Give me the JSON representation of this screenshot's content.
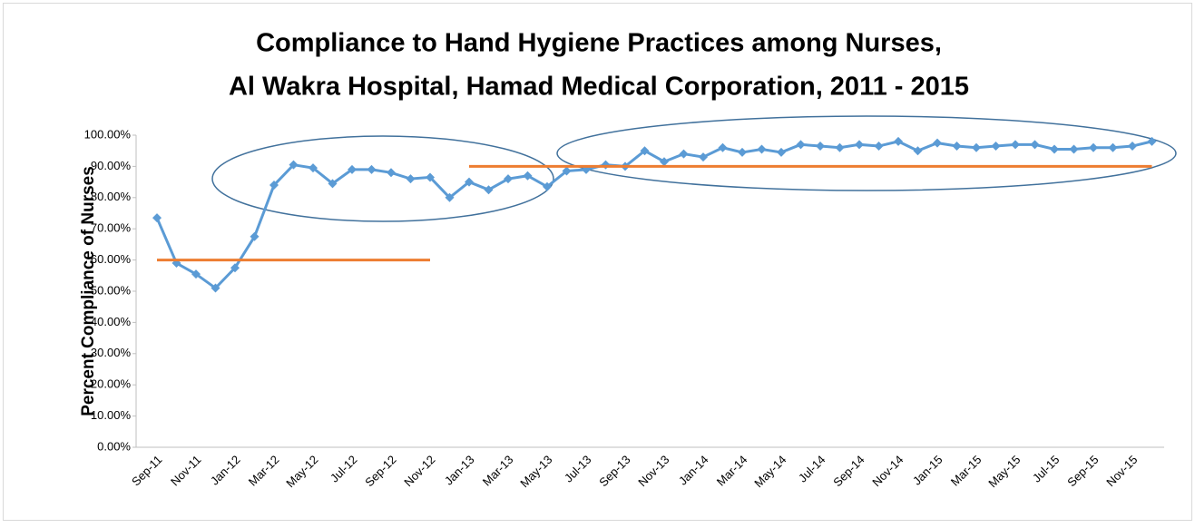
{
  "chart_data": {
    "type": "line",
    "title": [
      "Compliance to Hand Hygiene Practices among Nurses,",
      "Al Wakra Hospital, Hamad Medical Corporation, 2011 - 2015"
    ],
    "y_label": "Percent Compliance of Nurses",
    "categories": [
      "Sep-11",
      null,
      "Nov-11",
      null,
      "Jan-12",
      null,
      "Mar-12",
      null,
      "May-12",
      null,
      "Jul-12",
      null,
      "Sep-12",
      null,
      "Nov-12",
      null,
      "Jan-13",
      null,
      "Mar-13",
      null,
      "May-13",
      null,
      "Jul-13",
      null,
      "Sep-13",
      null,
      "Nov-13",
      null,
      "Jan-14",
      null,
      "Mar-14",
      null,
      "May-14",
      null,
      "Jul-14",
      null,
      "Sep-14",
      null,
      "Nov-14",
      null,
      "Jan-15",
      null,
      "Mar-15",
      null,
      "May-15",
      null,
      "Jul-15",
      null,
      "Sep-15",
      null,
      "Nov-15",
      null
    ],
    "series": [
      {
        "color": "#5b9bd5",
        "markers": true,
        "values": [
          73.5,
          59,
          55.5,
          51,
          57.5,
          67.5,
          84,
          90.5,
          89.5,
          84.5,
          89,
          89,
          88,
          86,
          86.5,
          80,
          85,
          82.5,
          86,
          87,
          83.5,
          88.5,
          89,
          90.5,
          90,
          95,
          91.5,
          94,
          93,
          96,
          94.5,
          95.5,
          94.5,
          97,
          96.5,
          96,
          97,
          96.5,
          98,
          95,
          97.5,
          96.5,
          96,
          96.5,
          97,
          97,
          95.5,
          95.5,
          96,
          96,
          96.5,
          98
        ]
      },
      {
        "color": "#ed7d31",
        "markers": false,
        "values": [
          60,
          60,
          60,
          60,
          60,
          60,
          60,
          60,
          60,
          60,
          60,
          60,
          60,
          60,
          60,
          null,
          null,
          null,
          null,
          null,
          null,
          null,
          null,
          null,
          null,
          null,
          null,
          null,
          null,
          null,
          null,
          null,
          null,
          null,
          null,
          null,
          null,
          null,
          null,
          null,
          null,
          null,
          null,
          null,
          null,
          null,
          null,
          null,
          null,
          null,
          null,
          null
        ]
      },
      {
        "color": "#ed7d31",
        "markers": false,
        "values": [
          null,
          null,
          null,
          null,
          null,
          null,
          null,
          null,
          null,
          null,
          null,
          null,
          null,
          null,
          null,
          null,
          90,
          90,
          90,
          90,
          90,
          90,
          90,
          90,
          90,
          90,
          90,
          90,
          90,
          90,
          90,
          90,
          90,
          90,
          90,
          90,
          90,
          90,
          90,
          90,
          90,
          90,
          90,
          90,
          90,
          90,
          90,
          90,
          90,
          90,
          90,
          90
        ]
      }
    ],
    "ylim": [
      0,
      100
    ],
    "yticks": [
      {
        "value": 0,
        "label": "0.00%"
      },
      {
        "value": 10,
        "label": "10.00%"
      },
      {
        "value": 20,
        "label": "20.00%"
      },
      {
        "value": 30,
        "label": "30.00%"
      },
      {
        "value": 40,
        "label": "40.00%"
      },
      {
        "value": 50,
        "label": "50.00%"
      },
      {
        "value": 60,
        "label": "60.00%"
      },
      {
        "value": 70,
        "label": "70.00%"
      },
      {
        "value": 80,
        "label": "80.00%"
      },
      {
        "value": 90,
        "label": "90.00%"
      },
      {
        "value": 100,
        "label": "100.00%"
      }
    ],
    "grid": false
  }
}
